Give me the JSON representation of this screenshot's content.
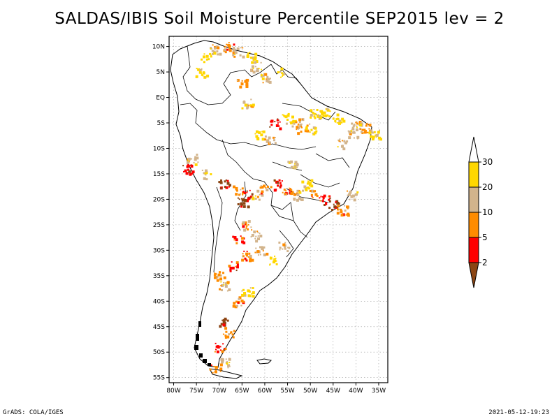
{
  "title": "SALDAS/IBIS Soil Moisture Percentile SEP2015 lev = 2",
  "footer_left": "GrADS: COLA/IGES",
  "footer_right": "2021-05-12-19:23",
  "map": {
    "lon_range": [
      -81,
      -33
    ],
    "lat_range": [
      -56,
      12
    ],
    "lat_ticks": [
      "10N",
      "5N",
      "EQ",
      "5S",
      "10S",
      "15S",
      "20S",
      "25S",
      "30S",
      "35S",
      "40S",
      "45S",
      "50S",
      "55S"
    ],
    "lat_values": [
      10,
      5,
      0,
      -5,
      -10,
      -15,
      -20,
      -25,
      -30,
      -35,
      -40,
      -45,
      -50,
      -55
    ],
    "lon_ticks": [
      "80W",
      "75W",
      "70W",
      "65W",
      "60W",
      "55W",
      "50W",
      "45W",
      "40W",
      "35W"
    ],
    "lon_values": [
      -80,
      -75,
      -70,
      -65,
      -60,
      -55,
      -50,
      -45,
      -40,
      -35
    ],
    "grid": true
  },
  "colorbar": {
    "labels": [
      "2",
      "5",
      "10",
      "20",
      "30"
    ],
    "colors": [
      "#8B4513",
      "#ff0000",
      "#ff8c00",
      "#d2b48c",
      "#ffd700",
      "#ffffff"
    ]
  },
  "chart_data": {
    "type": "heatmap",
    "title": "SALDAS/IBIS Soil Moisture Percentile SEP2015 lev = 2",
    "legend_placement": "right",
    "bins": [
      "<2",
      "2-5",
      "5-10",
      "10-20",
      "20-30",
      ">30"
    ],
    "patches": [
      {
        "lon": -73,
        "lat": 8,
        "bin": "20-30"
      },
      {
        "lon": -71,
        "lat": 9.5,
        "bin": "10-20"
      },
      {
        "lon": -68,
        "lat": 10,
        "bin": "5-10"
      },
      {
        "lon": -66,
        "lat": 9,
        "bin": "10-20"
      },
      {
        "lon": -63,
        "lat": 8,
        "bin": "20-30"
      },
      {
        "lon": -62,
        "lat": 6,
        "bin": "10-20"
      },
      {
        "lon": -74,
        "lat": 5,
        "bin": "20-30"
      },
      {
        "lon": -65,
        "lat": 3,
        "bin": "5-10"
      },
      {
        "lon": -60,
        "lat": 4,
        "bin": "10-20"
      },
      {
        "lon": -57,
        "lat": 5,
        "bin": "20-30"
      },
      {
        "lon": -64,
        "lat": -1,
        "bin": "10-20"
      },
      {
        "lon": -55,
        "lat": -4,
        "bin": "20-30"
      },
      {
        "lon": -53,
        "lat": -5,
        "bin": "10-20"
      },
      {
        "lon": -52,
        "lat": -6,
        "bin": "5-10"
      },
      {
        "lon": -50,
        "lat": -6,
        "bin": "20-30"
      },
      {
        "lon": -49,
        "lat": -3,
        "bin": "20-30"
      },
      {
        "lon": -47,
        "lat": -3,
        "bin": "20-30"
      },
      {
        "lon": -44,
        "lat": -4,
        "bin": "20-30"
      },
      {
        "lon": -40,
        "lat": -5,
        "bin": "10-20"
      },
      {
        "lon": -38,
        "lat": -6,
        "bin": "5-10"
      },
      {
        "lon": -41,
        "lat": -7,
        "bin": "10-20"
      },
      {
        "lon": -36,
        "lat": -7,
        "bin": "20-30"
      },
      {
        "lon": -43,
        "lat": -9,
        "bin": "10-20"
      },
      {
        "lon": -58,
        "lat": -5,
        "bin": "2-5"
      },
      {
        "lon": -61,
        "lat": -7,
        "bin": "20-30"
      },
      {
        "lon": -59,
        "lat": -8,
        "bin": "10-20"
      },
      {
        "lon": -54,
        "lat": -13,
        "bin": "10-20"
      },
      {
        "lon": -76,
        "lat": -12,
        "bin": "10-20"
      },
      {
        "lon": -77,
        "lat": -14,
        "bin": "2-5"
      },
      {
        "lon": -73,
        "lat": -15,
        "bin": "10-20"
      },
      {
        "lon": -69,
        "lat": -17,
        "bin": "<2"
      },
      {
        "lon": -66,
        "lat": -18,
        "bin": "5-10"
      },
      {
        "lon": -64,
        "lat": -19,
        "bin": "2-5"
      },
      {
        "lon": -65,
        "lat": -20.5,
        "bin": "<2"
      },
      {
        "lon": -62,
        "lat": -19,
        "bin": "10-20"
      },
      {
        "lon": -60,
        "lat": -18,
        "bin": "5-10"
      },
      {
        "lon": -57,
        "lat": -17,
        "bin": "2-5"
      },
      {
        "lon": -55,
        "lat": -18,
        "bin": "5-10"
      },
      {
        "lon": -53,
        "lat": -19,
        "bin": "10-20"
      },
      {
        "lon": -51,
        "lat": -17,
        "bin": "20-30"
      },
      {
        "lon": -49,
        "lat": -19,
        "bin": "5-10"
      },
      {
        "lon": -47,
        "lat": -20,
        "bin": "2-5"
      },
      {
        "lon": -45,
        "lat": -21,
        "bin": "<2"
      },
      {
        "lon": -43,
        "lat": -22,
        "bin": "5-10"
      },
      {
        "lon": -41,
        "lat": -19,
        "bin": "10-20"
      },
      {
        "lon": -64,
        "lat": -25,
        "bin": "5-10"
      },
      {
        "lon": -62,
        "lat": -27,
        "bin": "10-20"
      },
      {
        "lon": -66,
        "lat": -28,
        "bin": "2-5"
      },
      {
        "lon": -64,
        "lat": -31,
        "bin": "5-10"
      },
      {
        "lon": -61,
        "lat": -30,
        "bin": "10-20"
      },
      {
        "lon": -67,
        "lat": -33,
        "bin": "2-5"
      },
      {
        "lon": -70,
        "lat": -35,
        "bin": "5-10"
      },
      {
        "lon": -69,
        "lat": -37,
        "bin": "10-20"
      },
      {
        "lon": -64,
        "lat": -38,
        "bin": "20-30"
      },
      {
        "lon": -66,
        "lat": -40,
        "bin": "5-10"
      },
      {
        "lon": -69,
        "lat": -44,
        "bin": "<2"
      },
      {
        "lon": -68,
        "lat": -46,
        "bin": "5-10"
      },
      {
        "lon": -70,
        "lat": -49,
        "bin": "2-5"
      },
      {
        "lon": -69,
        "lat": -52,
        "bin": "10-20"
      },
      {
        "lon": -71,
        "lat": -53,
        "bin": "5-10"
      },
      {
        "lon": -58,
        "lat": -32,
        "bin": "20-30"
      },
      {
        "lon": -56,
        "lat": -29,
        "bin": "10-20"
      }
    ]
  }
}
